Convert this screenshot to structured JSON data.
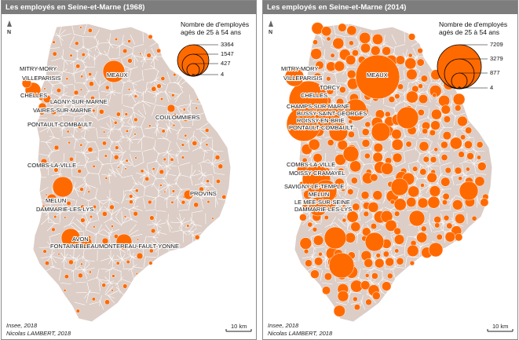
{
  "panels": [
    {
      "title": "Les employés en Seine-et-Marne (1968)",
      "legend_title_line1": "Nombre de d'employés",
      "legend_title_line2": "agés de 25 à 54 ans",
      "legend_values": [
        "3364",
        "1547",
        "427",
        "4"
      ],
      "north_label": "N",
      "source": "Insee, 2018",
      "author": "Nicolas LAMBERT, 2018",
      "scale_label": "10 km",
      "colors": {
        "circle": "#ff6a00",
        "land": "#dccdc6",
        "border": "#ffffff"
      },
      "cities": [
        "MITRY-MORY",
        "VILLEPARISIS",
        "MEAUX",
        "CHELLES",
        "LAGNY-SUR-MARNE",
        "VAIRES-SUR-MARNE",
        "PONTAULT-COMBAULT",
        "COULOMMIERS",
        "COMBS-LA-VILLE",
        "MELUN",
        "DAMMARIE-LES-LYS",
        "PROVINS",
        "AVON",
        "FONTAINEBLEAU",
        "MONTEREAU-FAULT-YONNE"
      ]
    },
    {
      "title": "Les employés en Seine-et-Marne (2014)",
      "legend_title_line1": "Nombre de d'employés",
      "legend_title_line2": "agés de 25 à 54 ans",
      "legend_values": [
        "7209",
        "3279",
        "877",
        "4"
      ],
      "north_label": "N",
      "source": "Insee, 2018",
      "author": "Nicolas LAMBERT, 2018",
      "scale_label": "10 km",
      "colors": {
        "circle": "#ff6a00",
        "land": "#dccdc6",
        "border": "#ffffff"
      },
      "cities": [
        "MITRY-MORY",
        "VILLEPARISIS",
        "MEAUX",
        "TORCY",
        "CHELLES",
        "CHAMPS-SUR-MARNE",
        "BUSSY-SAINT-GEORGES",
        "ROISSY-EN-BRIE",
        "PONTAULT-COMBAULT",
        "COMBS-LA-VILLE",
        "MOISSY-CRAMAYEL",
        "SAVIGNY-LE-TEMPLE",
        "MELUN",
        "LE MEE-SUR-SEINE",
        "DAMMARIE-LES-LYS"
      ]
    }
  ]
}
